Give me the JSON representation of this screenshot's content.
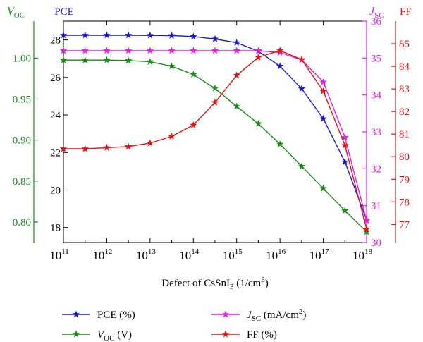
{
  "chart_data": {
    "type": "line",
    "xlabel_parts": [
      "Defect of CsSnI",
      "3",
      " (1/cm",
      "3",
      ")"
    ],
    "x_exponents": [
      11,
      11.5,
      12,
      12.5,
      13,
      13.5,
      14,
      14.5,
      15,
      15.5,
      16,
      16.5,
      17,
      17.5,
      18
    ],
    "x_ticks": [
      {
        "base": "10",
        "exp": "11",
        "value": 11
      },
      {
        "base": "10",
        "exp": "12",
        "value": 12
      },
      {
        "base": "10",
        "exp": "13",
        "value": 13
      },
      {
        "base": "10",
        "exp": "14",
        "value": 14
      },
      {
        "base": "10",
        "exp": "15",
        "value": 15
      },
      {
        "base": "10",
        "exp": "16",
        "value": 16
      },
      {
        "base": "10",
        "exp": "17",
        "value": 17
      },
      {
        "base": "10",
        "exp": "18",
        "value": 18
      }
    ],
    "xlim": [
      11,
      18
    ],
    "log_x": true,
    "axes": {
      "pce": {
        "label": "PCE",
        "color": "#1a1acc",
        "ylim": [
          17.2,
          29.0
        ],
        "ticks": [
          "18",
          "20",
          "22",
          "24",
          "26",
          "28"
        ]
      },
      "voc": {
        "label_main": "V",
        "label_sub": "OC",
        "color": "#1a8a1a",
        "ylim": [
          0.775,
          1.045
        ],
        "ticks": [
          "0.80",
          "0.85",
          "0.90",
          "0.95",
          "1.00"
        ]
      },
      "jsc": {
        "label_main": "J",
        "label_sub": "SC",
        "color": "#e31ee3",
        "ylim": [
          30.0,
          36.0
        ],
        "ticks": [
          "30",
          "31",
          "32",
          "33",
          "34",
          "35",
          "36"
        ]
      },
      "ff": {
        "label": "FF",
        "color": "#e01414",
        "ylim": [
          76.2,
          86.0
        ],
        "ticks": [
          "77",
          "78",
          "79",
          "80",
          "81",
          "82",
          "83",
          "84",
          "85"
        ]
      }
    },
    "series": [
      {
        "key": "pce",
        "color": "#1a1acc",
        "values": [
          28.25,
          28.25,
          28.25,
          28.25,
          28.24,
          28.23,
          28.18,
          28.05,
          27.85,
          27.4,
          26.6,
          25.4,
          23.8,
          21.5,
          18.4
        ]
      },
      {
        "key": "voc",
        "color": "#1a8a1a",
        "values": [
          0.9975,
          0.9975,
          0.9975,
          0.997,
          0.9955,
          0.99,
          0.98,
          0.963,
          0.941,
          0.92,
          0.895,
          0.868,
          0.841,
          0.814,
          0.788
        ]
      },
      {
        "key": "jsc",
        "color": "#e31ee3",
        "values": [
          35.2,
          35.2,
          35.2,
          35.2,
          35.2,
          35.2,
          35.2,
          35.2,
          35.2,
          35.2,
          35.15,
          34.95,
          34.35,
          32.85,
          30.6
        ]
      },
      {
        "key": "ff",
        "color": "#e01414",
        "values": [
          80.35,
          80.35,
          80.4,
          80.45,
          80.6,
          80.9,
          81.4,
          82.4,
          83.6,
          84.4,
          84.7,
          84.3,
          82.9,
          80.5,
          76.8
        ]
      }
    ],
    "legend": [
      {
        "key": "pce",
        "color": "#1a1acc",
        "text": "PCE (%)"
      },
      {
        "key": "jsc",
        "color": "#e31ee3",
        "main": "J",
        "sub": "SC",
        "text": " (mA/cm",
        "sup": "2",
        "tail": ")"
      },
      {
        "key": "voc",
        "color": "#1a8a1a",
        "main": "V",
        "sub": "OC",
        "text": " (V)"
      },
      {
        "key": "ff",
        "color": "#e01414",
        "text": "FF (%)"
      }
    ],
    "legend_position": "bottom",
    "grid": false
  }
}
